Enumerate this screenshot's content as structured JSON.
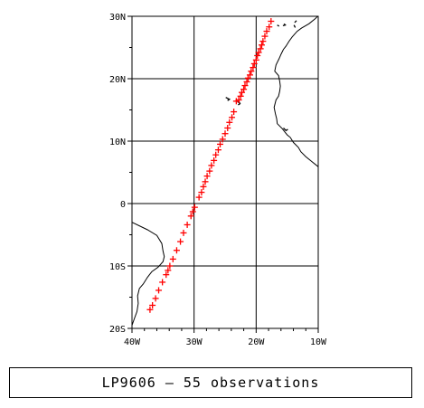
{
  "map": {
    "projection": "cylindrical",
    "lon_range": [
      -40,
      -10
    ],
    "lat_range": [
      -20,
      30
    ],
    "grid": true,
    "x_ticks": [
      {
        "lon": -40,
        "label": "40W"
      },
      {
        "lon": -30,
        "label": "30W"
      },
      {
        "lon": -20,
        "label": "20W"
      },
      {
        "lon": -10,
        "label": "10W"
      }
    ],
    "y_ticks": [
      {
        "lat": 30,
        "label": "30N"
      },
      {
        "lat": 20,
        "label": "20N"
      },
      {
        "lat": 10,
        "label": "10N"
      },
      {
        "lat": 0,
        "label": "0"
      },
      {
        "lat": -10,
        "label": "10S"
      },
      {
        "lat": -20,
        "label": "20S"
      }
    ],
    "marker": {
      "symbol": "+",
      "color": "#ff0000"
    },
    "coastline_color": "#000000",
    "observations": [
      [
        -17.6,
        29.2
      ],
      [
        -18.3,
        27.6
      ],
      [
        -18.9,
        26.0
      ],
      [
        -19.3,
        24.8
      ],
      [
        -19.8,
        23.7
      ],
      [
        -20.3,
        22.4
      ],
      [
        -20.8,
        21.2
      ],
      [
        -21.3,
        20.1
      ],
      [
        -21.8,
        18.9
      ],
      [
        -22.3,
        17.8
      ],
      [
        -22.8,
        16.6
      ],
      [
        -23.2,
        16.4
      ],
      [
        -23.6,
        14.7
      ],
      [
        -24.3,
        13.0
      ],
      [
        -25.0,
        11.2
      ],
      [
        -25.8,
        9.5
      ],
      [
        -26.5,
        7.8
      ],
      [
        -27.2,
        6.1
      ],
      [
        -27.9,
        4.4
      ],
      [
        -28.5,
        2.7
      ],
      [
        -29.2,
        1.0
      ],
      [
        -29.9,
        -0.6
      ],
      [
        -30.5,
        -2.0
      ],
      [
        -31.1,
        -3.4
      ],
      [
        -31.7,
        -4.7
      ],
      [
        -32.2,
        -6.1
      ],
      [
        -32.8,
        -7.5
      ],
      [
        -33.4,
        -8.9
      ],
      [
        -33.9,
        -10.0
      ],
      [
        -34.5,
        -11.4
      ],
      [
        -35.1,
        -12.6
      ],
      [
        -35.7,
        -13.9
      ],
      [
        -36.2,
        -15.2
      ],
      [
        -36.7,
        -16.3
      ],
      [
        -37.1,
        -17.0
      ],
      [
        -17.9,
        28.3
      ],
      [
        -18.6,
        26.8
      ],
      [
        -19.1,
        25.4
      ],
      [
        -19.6,
        24.2
      ],
      [
        -20.0,
        23.0
      ],
      [
        -20.5,
        21.8
      ],
      [
        -21.0,
        20.6
      ],
      [
        -21.5,
        19.5
      ],
      [
        -22.0,
        18.3
      ],
      [
        -22.5,
        17.2
      ],
      [
        -23.9,
        13.8
      ],
      [
        -24.6,
        12.1
      ],
      [
        -25.4,
        10.3
      ],
      [
        -26.1,
        8.6
      ],
      [
        -26.8,
        6.9
      ],
      [
        -27.5,
        5.2
      ],
      [
        -28.2,
        3.5
      ],
      [
        -28.8,
        1.8
      ],
      [
        -30.2,
        -1.3
      ],
      [
        -34.2,
        -10.7
      ]
    ],
    "coastlines": [
      [
        [
          -40,
          -3.0
        ],
        [
          -37.5,
          -4.2
        ],
        [
          -36.0,
          -5.1
        ],
        [
          -35.2,
          -6.4
        ],
        [
          -35.0,
          -7.6
        ],
        [
          -34.8,
          -8.5
        ],
        [
          -35.0,
          -9.3
        ],
        [
          -35.8,
          -10.2
        ],
        [
          -36.8,
          -10.9
        ],
        [
          -37.5,
          -11.8
        ],
        [
          -38.2,
          -12.9
        ],
        [
          -38.8,
          -13.6
        ],
        [
          -39.1,
          -14.8
        ],
        [
          -39.0,
          -16.0
        ],
        [
          -39.2,
          -17.3
        ],
        [
          -39.6,
          -18.4
        ],
        [
          -40.0,
          -19.5
        ]
      ],
      [
        [
          -10.1,
          30.0
        ],
        [
          -10.5,
          29.6
        ],
        [
          -11.5,
          28.8
        ],
        [
          -12.7,
          28.1
        ],
        [
          -13.4,
          27.6
        ],
        [
          -14.2,
          26.7
        ],
        [
          -14.7,
          26.0
        ],
        [
          -15.2,
          25.2
        ],
        [
          -15.6,
          24.7
        ],
        [
          -16.0,
          23.9
        ],
        [
          -16.3,
          23.2
        ],
        [
          -16.8,
          22.2
        ],
        [
          -17.0,
          21.2
        ],
        [
          -16.4,
          20.5
        ],
        [
          -16.2,
          19.6
        ],
        [
          -16.1,
          18.8
        ],
        [
          -16.2,
          18.0
        ],
        [
          -16.4,
          17.2
        ],
        [
          -16.8,
          16.6
        ],
        [
          -17.1,
          15.4
        ],
        [
          -16.9,
          14.4
        ],
        [
          -16.7,
          13.6
        ],
        [
          -16.6,
          12.8
        ],
        [
          -15.8,
          12.0
        ],
        [
          -15.4,
          11.5
        ],
        [
          -15.0,
          11.0
        ],
        [
          -14.5,
          10.6
        ],
        [
          -14.0,
          9.8
        ],
        [
          -13.2,
          9.0
        ],
        [
          -12.8,
          8.3
        ],
        [
          -12.0,
          7.5
        ],
        [
          -11.0,
          6.7
        ],
        [
          -10.0,
          5.9
        ]
      ]
    ],
    "islands": [
      [
        [
          -24.9,
          17.0
        ],
        [
          -24.3,
          16.7
        ],
        [
          -24.6,
          16.5
        ]
      ],
      [
        [
          -23.0,
          16.2
        ],
        [
          -22.8,
          16.4
        ],
        [
          -22.6,
          16.0
        ],
        [
          -22.9,
          15.8
        ]
      ],
      [
        [
          -15.6,
          12.1
        ],
        [
          -15.2,
          11.7
        ],
        [
          -14.9,
          11.9
        ]
      ],
      [
        [
          -15.5,
          28.8
        ],
        [
          -15.3,
          28.6
        ],
        [
          -15.7,
          28.5
        ]
      ],
      [
        [
          -13.8,
          29.0
        ],
        [
          -13.5,
          29.3
        ]
      ],
      [
        [
          -13.7,
          28.2
        ],
        [
          -13.9,
          28.6
        ]
      ],
      [
        [
          -16.6,
          28.6
        ],
        [
          -16.3,
          28.4
        ]
      ]
    ]
  },
  "caption": "LP9606 – 55 observations"
}
